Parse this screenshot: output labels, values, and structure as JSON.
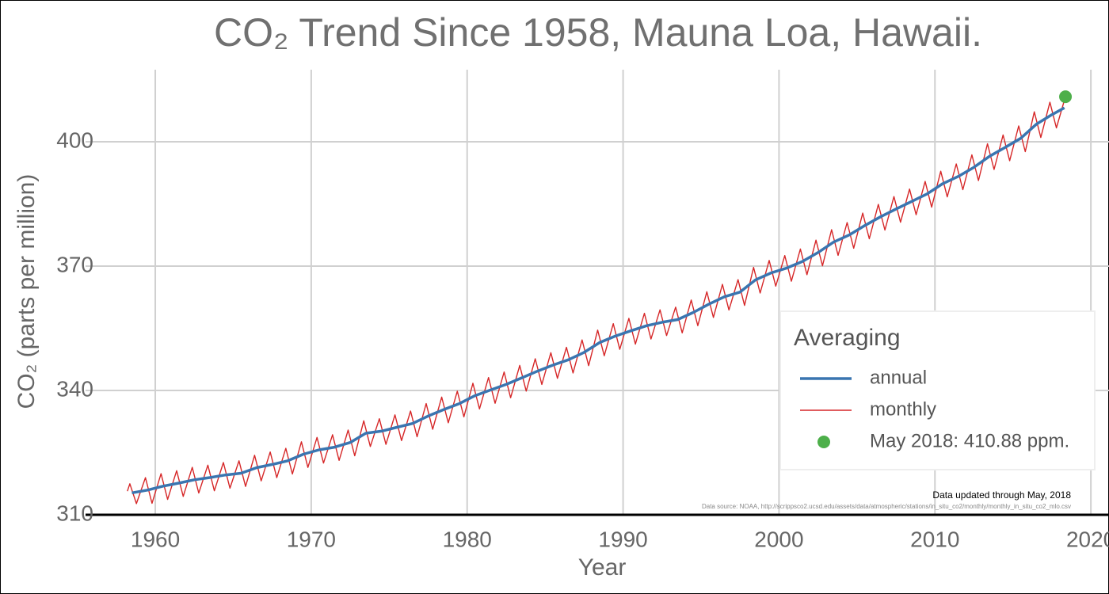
{
  "chart_data": {
    "type": "line",
    "title": "CO₂ Trend Since 1958, Mauna Loa, Hawaii.",
    "x_label": "Year",
    "y_label": "CO₂ (parts per million)",
    "legend_title": "Averaging",
    "legend_position": "right",
    "grid": true,
    "annotations": [
      "Data updated through May, 2018",
      "Data source: NOAA, http://scrippsco2.ucsd.edu/assets/data/atmospheric/stations/in_situ_co2/monthly/monthly_in_situ_co2_mlo.csv"
    ],
    "xlim": [
      1956.9,
      2020.4
    ],
    "xticks": [
      1960,
      1970,
      1980,
      1990,
      2000,
      2010,
      2020
    ],
    "ylim": [
      310,
      417.4
    ],
    "yticks": [
      310,
      340,
      370,
      400
    ],
    "series": [
      {
        "name": "annual",
        "color": "#3a75b0",
        "style": "line",
        "x": [
          1958.5,
          1959.5,
          1960.5,
          1961.5,
          1962.5,
          1963.5,
          1964.5,
          1965.5,
          1966.5,
          1967.5,
          1968.5,
          1969.5,
          1970.5,
          1971.5,
          1972.5,
          1973.5,
          1974.5,
          1975.5,
          1976.5,
          1977.5,
          1978.5,
          1979.5,
          1980.5,
          1981.5,
          1982.5,
          1983.5,
          1984.5,
          1985.5,
          1986.5,
          1987.5,
          1988.5,
          1989.5,
          1990.5,
          1991.5,
          1992.5,
          1993.5,
          1994.5,
          1995.5,
          1996.5,
          1997.5,
          1998.5,
          1999.5,
          2000.5,
          2001.5,
          2002.5,
          2003.5,
          2004.5,
          2005.5,
          2006.5,
          2007.5,
          2008.5,
          2009.5,
          2010.5,
          2011.5,
          2012.5,
          2013.5,
          2014.5,
          2015.5,
          2016.5,
          2017.5,
          2018.3
        ],
        "values": [
          315.3,
          315.97,
          316.91,
          317.64,
          318.45,
          318.99,
          319.62,
          320.04,
          321.38,
          322.16,
          323.04,
          324.62,
          325.68,
          326.32,
          327.45,
          329.68,
          330.18,
          331.11,
          332.04,
          333.83,
          335.4,
          336.84,
          338.75,
          340.11,
          341.45,
          343.05,
          344.65,
          346.12,
          347.42,
          349.19,
          351.57,
          353.12,
          354.39,
          355.61,
          356.45,
          357.1,
          358.83,
          360.82,
          362.61,
          363.73,
          366.7,
          368.38,
          369.55,
          371.14,
          373.28,
          375.8,
          377.52,
          379.8,
          381.9,
          383.79,
          385.6,
          387.43,
          389.9,
          391.65,
          393.85,
          396.52,
          398.65,
          400.83,
          404.24,
          406.55,
          408.2
        ]
      },
      {
        "name": "monthly",
        "color": "#d62728",
        "style": "line",
        "x": [
          1958.21,
          1958.37,
          1958.79,
          1959.37,
          1959.79,
          1960.37,
          1960.79,
          1961.37,
          1961.79,
          1962.37,
          1962.79,
          1963.37,
          1963.79,
          1964.37,
          1964.79,
          1965.37,
          1965.79,
          1966.37,
          1966.79,
          1967.37,
          1967.79,
          1968.37,
          1968.79,
          1969.37,
          1969.79,
          1970.37,
          1970.79,
          1971.37,
          1971.79,
          1972.37,
          1972.79,
          1973.37,
          1973.79,
          1974.37,
          1974.79,
          1975.37,
          1975.79,
          1976.37,
          1976.79,
          1977.37,
          1977.79,
          1978.37,
          1978.79,
          1979.37,
          1979.79,
          1980.37,
          1980.79,
          1981.37,
          1981.79,
          1982.37,
          1982.79,
          1983.37,
          1983.79,
          1984.37,
          1984.79,
          1985.37,
          1985.79,
          1986.37,
          1986.79,
          1987.37,
          1987.79,
          1988.37,
          1988.79,
          1989.37,
          1989.79,
          1990.37,
          1990.79,
          1991.37,
          1991.79,
          1992.37,
          1992.79,
          1993.37,
          1993.79,
          1994.37,
          1994.79,
          1995.37,
          1995.79,
          1996.37,
          1996.79,
          1997.37,
          1997.79,
          1998.37,
          1998.79,
          1999.37,
          1999.79,
          2000.37,
          2000.79,
          2001.37,
          2001.79,
          2002.37,
          2002.79,
          2003.37,
          2003.79,
          2004.37,
          2004.79,
          2005.37,
          2005.79,
          2006.37,
          2006.79,
          2007.37,
          2007.79,
          2008.37,
          2008.79,
          2009.37,
          2009.79,
          2010.37,
          2010.79,
          2011.37,
          2011.79,
          2012.37,
          2012.79,
          2013.37,
          2013.79,
          2014.37,
          2014.79,
          2015.37,
          2015.79,
          2016.37,
          2016.79,
          2017.37,
          2017.79,
          2018.29
        ],
        "values": [
          315.7,
          317.5,
          312.7,
          318.97,
          312.77,
          319.91,
          313.71,
          320.64,
          314.44,
          321.45,
          315.25,
          321.99,
          315.79,
          322.62,
          316.42,
          323.04,
          316.84,
          324.38,
          318.18,
          325.16,
          318.96,
          326.04,
          319.84,
          327.62,
          321.42,
          328.68,
          322.48,
          329.32,
          323.12,
          330.45,
          324.25,
          332.68,
          326.48,
          333.18,
          326.98,
          334.11,
          327.91,
          335.04,
          328.84,
          336.83,
          330.63,
          338.4,
          332.2,
          339.84,
          333.64,
          341.75,
          335.55,
          343.11,
          336.91,
          344.45,
          338.25,
          346.05,
          339.85,
          347.65,
          341.45,
          349.12,
          342.92,
          350.42,
          344.22,
          352.19,
          345.99,
          354.57,
          348.37,
          356.12,
          349.92,
          357.39,
          351.19,
          358.61,
          352.41,
          359.45,
          353.25,
          360.1,
          353.9,
          361.83,
          355.63,
          363.82,
          357.62,
          365.61,
          359.41,
          366.73,
          360.53,
          369.7,
          363.5,
          371.38,
          365.18,
          372.55,
          366.35,
          374.14,
          367.94,
          376.28,
          370.08,
          378.8,
          372.6,
          380.52,
          374.32,
          382.8,
          376.6,
          384.9,
          378.7,
          386.79,
          380.59,
          388.6,
          382.4,
          390.43,
          384.23,
          392.9,
          386.7,
          394.65,
          388.45,
          396.85,
          390.65,
          399.52,
          393.32,
          401.65,
          395.45,
          403.83,
          397.63,
          407.24,
          401.04,
          409.55,
          403.35,
          409.9
        ]
      },
      {
        "name": "May 2018: 410.88 ppm.",
        "color": "#4daf4a",
        "style": "point",
        "x": [
          2018.37
        ],
        "values": [
          410.88
        ]
      }
    ]
  }
}
